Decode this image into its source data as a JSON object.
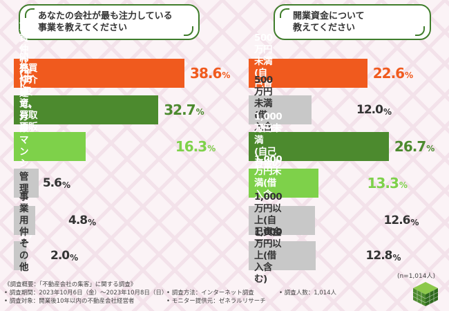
{
  "questions": {
    "left": "あなたの会社が最も注力している\n事業を教えてください",
    "right": "開業資金について\n教えてください"
  },
  "colors": {
    "orange": "#f05a1e",
    "green_dark": "#4c8a2e",
    "green_light": "#7ed14a",
    "gray": "#c8c8c8",
    "text_dark": "#333333"
  },
  "chart_data": [
    {
      "type": "bar",
      "orientation": "horizontal",
      "title": "あなたの会社が最も注力している事業を教えてください",
      "unit": "%",
      "categories": [
        "賃貸仲介(主に居住用)",
        "売買仲介\n(投資、買取再販含む)",
        "開発\n(戸建て、分譲マンション、アパート)",
        "管理",
        "事業用仲介",
        "その他"
      ],
      "values": [
        38.6,
        32.7,
        16.3,
        5.6,
        4.8,
        2.0
      ],
      "value_labels": [
        "38.6",
        "32.7",
        "16.3",
        "5.6",
        "4.8",
        "2.0"
      ],
      "bar_colors": [
        "orange",
        "green_dark",
        "green_light",
        "gray",
        "gray",
        "gray"
      ]
    },
    {
      "type": "bar",
      "orientation": "horizontal",
      "title": "開業資金について教えてください",
      "unit": "%",
      "categories": [
        "500万円未満\n(自己資金のみ)",
        "500万円未満(借入含む)",
        "1,000万円未満\n(自己資金のみ)",
        "1,000万円未満(借入含む)",
        "1,000万円以上(自己資金のみ)",
        "1,000万円以上(借入含む)"
      ],
      "values": [
        22.6,
        12.0,
        26.7,
        13.3,
        12.6,
        12.8
      ],
      "value_labels": [
        "22.6",
        "12.0",
        "26.7",
        "13.3",
        "12.6",
        "12.8"
      ],
      "bar_colors": [
        "orange",
        "gray",
        "green_dark",
        "green_light",
        "gray",
        "gray"
      ]
    }
  ],
  "pct_sign": "%",
  "n_note": "(n=1,014人)",
  "footer": {
    "title": "《調査概要：「不動産会社の集客」に関する調査》",
    "period": "• 調査期間：2023年10月6日（金）～2023年10月8日（日）",
    "method": "• 調査方法：インターネット調査",
    "people": "• 調査人数：1,014人",
    "target": "• 調査対象：開業後10年以内の不動産会社経営者",
    "provider": "• モニター提供元：ゼネラルリサーチ"
  }
}
